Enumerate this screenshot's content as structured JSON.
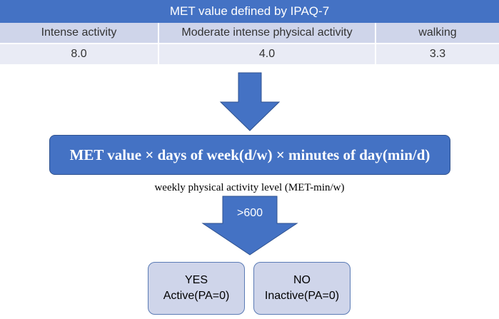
{
  "table": {
    "title": "MET value defined by IPAQ-7",
    "headers": [
      "Intense activity",
      "Moderate intense physical activity",
      "walking"
    ],
    "values": [
      "8.0",
      "4.0",
      "3.3"
    ]
  },
  "formula": "MET value × days of week(d/w) × minutes of day(min/d)",
  "caption": "weekly physical activity level (MET-min/w)",
  "threshold": ">600",
  "yes_box": {
    "line1": "YES",
    "line2": "Active(PA=0)"
  },
  "no_box": {
    "line1": "NO",
    "line2": "Inactive(PA=0)"
  },
  "colors": {
    "accent": "#4472c4",
    "header_row": "#cfd5ea",
    "value_row": "#e9ebf5"
  }
}
